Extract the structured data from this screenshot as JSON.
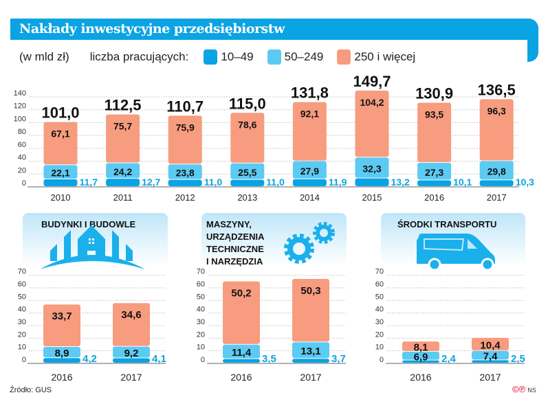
{
  "title": "Nakłady inwestycyjne przedsiębiorstw",
  "unit": "(w mld zł)",
  "legend_label": "liczba pracujących:",
  "colors": {
    "10-49": "#0aa3e3",
    "50-249": "#5ccaf3",
    "250+": "#f79c7e",
    "accent": "#0aa3e3"
  },
  "source": "Źródło: GUS",
  "logo": {
    "text": "©℗",
    "initials": "NS"
  },
  "chart_data": [
    {
      "type": "bar",
      "stacked": true,
      "ylim": [
        0,
        140
      ],
      "yticks": [
        0,
        20,
        40,
        60,
        80,
        100,
        120,
        140
      ],
      "grid": true,
      "categories": [
        "2010",
        "2011",
        "2012",
        "2013",
        "2014",
        "2015",
        "2016",
        "2017"
      ],
      "series": [
        {
          "name": "10–49",
          "values": [
            11.7,
            12.7,
            11.0,
            11.0,
            11.9,
            13.2,
            10.1,
            10.3
          ],
          "labels": [
            "11,7",
            "12,7",
            "11,0",
            "11,0",
            "11,9",
            "13,2",
            "10,1",
            "10,3"
          ]
        },
        {
          "name": "50–249",
          "values": [
            22.1,
            24.2,
            23.8,
            25.5,
            27.9,
            32.3,
            27.3,
            29.8
          ],
          "labels": [
            "22,1",
            "24,2",
            "23,8",
            "25,5",
            "27,9",
            "32,3",
            "27,3",
            "29,8"
          ]
        },
        {
          "name": "250 i więcej",
          "values": [
            67.1,
            75.7,
            75.9,
            78.6,
            92.1,
            104.2,
            93.5,
            96.3
          ],
          "labels": [
            "67,1",
            "75,7",
            "75,9",
            "78,6",
            "92,1",
            "104,2",
            "93,5",
            "96,3"
          ]
        }
      ],
      "totals": [
        "101,0",
        "112,5",
        "110,7",
        "115,0",
        "131,8",
        "149,7",
        "130,9",
        "136,5"
      ]
    },
    {
      "type": "bar",
      "stacked": true,
      "title": "BUDYNKI I BUDOWLE",
      "icon": "buildings-icon",
      "ylim": [
        0,
        70
      ],
      "yticks": [
        0,
        10,
        20,
        30,
        40,
        50,
        60,
        70
      ],
      "grid": true,
      "categories": [
        "2016",
        "2017"
      ],
      "series": [
        {
          "name": "10–49",
          "values": [
            4.2,
            4.1
          ],
          "labels": [
            "4,2",
            "4,1"
          ]
        },
        {
          "name": "50–249",
          "values": [
            8.9,
            9.2
          ],
          "labels": [
            "8,9",
            "9,2"
          ]
        },
        {
          "name": "250 i więcej",
          "values": [
            33.7,
            34.6
          ],
          "labels": [
            "33,7",
            "34,6"
          ]
        }
      ]
    },
    {
      "type": "bar",
      "stacked": true,
      "title": "MASZYNY, URZĄDZENIA TECHNICZNE I NARZĘDZIA",
      "title_lines": [
        "MASZYNY,",
        "URZĄDZENIA",
        "TECHNICZNE",
        "I NARZĘDZIA"
      ],
      "icon": "gears-icon",
      "ylim": [
        0,
        70
      ],
      "yticks": [
        0,
        10,
        20,
        30,
        40,
        50,
        60,
        70
      ],
      "grid": true,
      "categories": [
        "2016",
        "2017"
      ],
      "series": [
        {
          "name": "10–49",
          "values": [
            3.5,
            3.7
          ],
          "labels": [
            "3,5",
            "3,7"
          ]
        },
        {
          "name": "50–249",
          "values": [
            11.4,
            13.1
          ],
          "labels": [
            "11,4",
            "13,1"
          ]
        },
        {
          "name": "250 i więcej",
          "values": [
            50.2,
            50.3
          ],
          "labels": [
            "50,2",
            "50,3"
          ]
        }
      ]
    },
    {
      "type": "bar",
      "stacked": true,
      "title": "ŚRODKI TRANSPORTU",
      "icon": "van-icon",
      "ylim": [
        0,
        70
      ],
      "yticks": [
        0,
        10,
        20,
        30,
        40,
        50,
        60,
        70
      ],
      "grid": true,
      "categories": [
        "2016",
        "2017"
      ],
      "series": [
        {
          "name": "10–49",
          "values": [
            2.4,
            2.5
          ],
          "labels": [
            "2,4",
            "2,5"
          ]
        },
        {
          "name": "50–249",
          "values": [
            6.9,
            7.4
          ],
          "labels": [
            "6,9",
            "7,4"
          ]
        },
        {
          "name": "250 i więcej",
          "values": [
            8.1,
            10.4
          ],
          "labels": [
            "8,1",
            "10,4"
          ]
        }
      ]
    }
  ]
}
